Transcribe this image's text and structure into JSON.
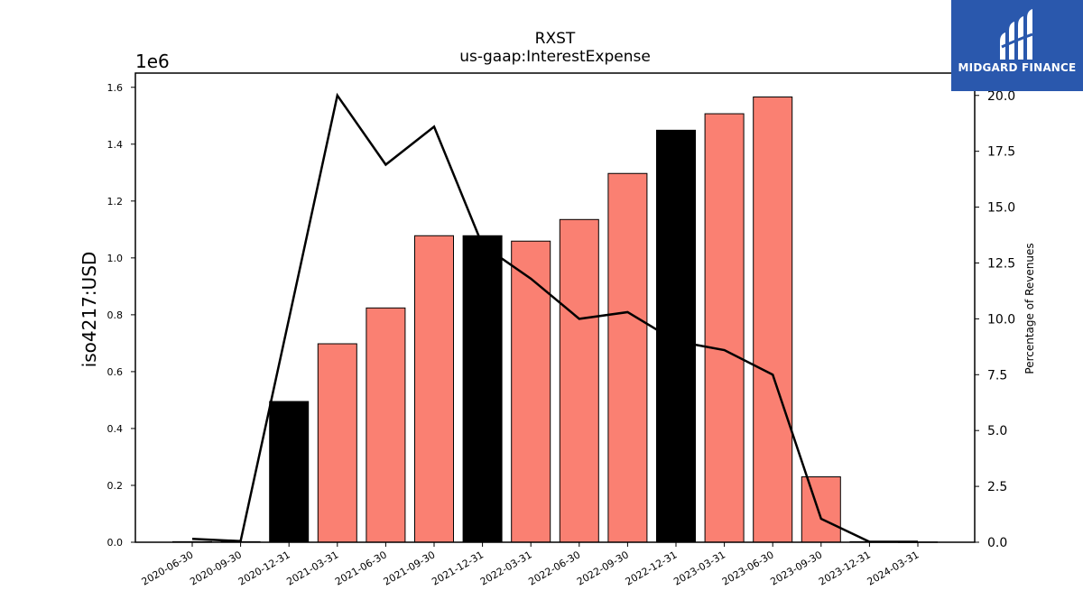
{
  "logo": {
    "text": "MIDGARD FINANCE",
    "color": "#2a58ad"
  },
  "chart_data": {
    "type": "bar",
    "title": "RXST",
    "subtitle": "us-gaap:InterestExpense",
    "ylabel": "iso4217:USD",
    "y2label": "Percentage of Revenues",
    "y_multiplier_label": "1e6",
    "categories": [
      "2020-06-30",
      "2020-09-30",
      "2020-12-31",
      "2021-03-31",
      "2021-06-30",
      "2021-09-30",
      "2021-12-31",
      "2022-03-31",
      "2022-06-30",
      "2022-09-30",
      "2022-12-31",
      "2023-03-31",
      "2023-06-30",
      "2023-09-30",
      "2023-12-31",
      "2024-03-31"
    ],
    "ylim": [
      0,
      1650000
    ],
    "y2lim": [
      0,
      21.0
    ],
    "yticks": [
      0.0,
      0.2,
      0.4,
      0.6,
      0.8,
      1.0,
      1.2,
      1.4,
      1.6
    ],
    "y2ticks": [
      0.0,
      2.5,
      5.0,
      7.5,
      10.0,
      12.5,
      15.0,
      17.5,
      20.0
    ],
    "series": [
      {
        "type": "bar",
        "values": [
          2000,
          2000,
          495000,
          698000,
          824000,
          1078000,
          1078000,
          1059000,
          1135000,
          1297000,
          1449000,
          1507000,
          1566000,
          230000,
          2000,
          1000
        ]
      },
      {
        "type": "line",
        "values": [
          0.15,
          0.05,
          10.0,
          20.0,
          16.9,
          18.6,
          13.3,
          11.8,
          10.0,
          10.3,
          9.0,
          8.6,
          7.5,
          1.05,
          0.02,
          0.02
        ]
      }
    ],
    "bar_colors": [
      "#fa8072",
      "#fa8072",
      "#000000",
      "#fa8072",
      "#fa8072",
      "#fa8072",
      "#000000",
      "#fa8072",
      "#fa8072",
      "#fa8072",
      "#000000",
      "#fa8072",
      "#fa8072",
      "#fa8072",
      "#fa8072",
      "#fa8072"
    ],
    "line_color": "#000000",
    "grid": false
  }
}
